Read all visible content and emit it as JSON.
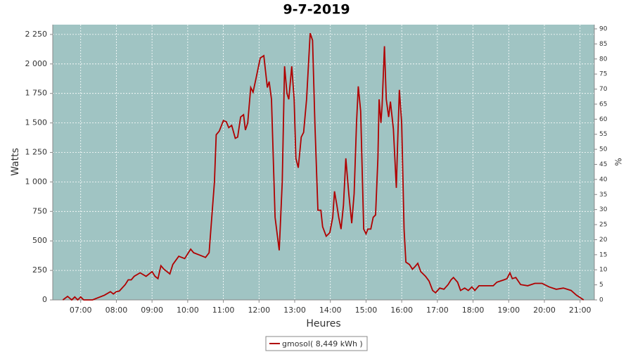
{
  "chart_data": {
    "type": "line",
    "title": "9-7-2019",
    "x_label": "Heures",
    "y_label": "Watts",
    "y2_label": "%",
    "xlim": [
      "06:13",
      "21:24"
    ],
    "xticks": [
      "07:00",
      "08:00",
      "09:00",
      "10:00",
      "11:00",
      "12:00",
      "13:00",
      "14:00",
      "15:00",
      "16:00",
      "17:00",
      "18:00",
      "19:00",
      "20:00",
      "21:00"
    ],
    "ylim": [
      0,
      2333
    ],
    "yticks": [
      0,
      250,
      500,
      750,
      {
        "value": 1000,
        "label": "1 000"
      },
      {
        "value": 1250,
        "label": "1 250"
      },
      {
        "value": 1500,
        "label": "1 500"
      },
      {
        "value": 1750,
        "label": "1 750"
      },
      {
        "value": 2000,
        "label": "2 000"
      },
      {
        "value": 2250,
        "label": "2 250"
      }
    ],
    "y2lim": [
      0,
      91.4
    ],
    "y2ticks": [
      0,
      5,
      10,
      15,
      20,
      25,
      30,
      35,
      40,
      45,
      50,
      55,
      60,
      65,
      70,
      75,
      80,
      85,
      90
    ],
    "grid": true,
    "plot_background": "#a0c4c3",
    "legend": "bottom",
    "x": [
      "06:30",
      "06:38",
      "06:45",
      "06:50",
      "06:55",
      "07:00",
      "07:05",
      "07:10",
      "07:20",
      "07:40",
      "07:50",
      "07:55",
      "08:00",
      "08:05",
      "08:15",
      "08:20",
      "08:25",
      "08:30",
      "08:40",
      "08:50",
      "09:00",
      "09:05",
      "09:10",
      "09:15",
      "09:20",
      "09:30",
      "09:35",
      "09:45",
      "09:55",
      "10:05",
      "10:10",
      "10:20",
      "10:30",
      "10:36",
      "10:45",
      "10:48",
      "10:53",
      "11:00",
      "11:05",
      "11:09",
      "11:14",
      "11:20",
      "11:24",
      "11:29",
      "11:34",
      "11:37",
      "11:41",
      "11:46",
      "11:50",
      "11:55",
      "12:02",
      "12:08",
      "12:14",
      "12:17",
      "12:21",
      "12:27",
      "12:34",
      "12:39",
      "12:43",
      "12:47",
      "12:50",
      "12:55",
      "12:59",
      "13:02",
      "13:06",
      "13:11",
      "13:15",
      "13:20",
      "13:26",
      "13:30",
      "13:34",
      "13:39",
      "13:44",
      "13:47",
      "13:53",
      "13:59",
      "14:04",
      "14:07",
      "14:11",
      "14:14",
      "14:18",
      "14:22",
      "14:26",
      "14:31",
      "14:36",
      "14:40",
      "14:44",
      "14:47",
      "14:51",
      "14:56",
      "15:00",
      "15:03",
      "15:08",
      "15:12",
      "15:16",
      "15:20",
      "15:22",
      "15:25",
      "15:27",
      "15:31",
      "15:34",
      "15:38",
      "15:41",
      "15:46",
      "15:51",
      "15:53",
      "15:56",
      "16:00",
      "16:04",
      "16:07",
      "16:13",
      "16:18",
      "16:22",
      "16:27",
      "16:32",
      "16:40",
      "16:46",
      "16:52",
      "16:57",
      "17:04",
      "17:11",
      "17:18",
      "17:23",
      "17:27",
      "17:34",
      "17:39",
      "17:46",
      "17:52",
      "17:58",
      "18:03",
      "18:10",
      "18:34",
      "18:40",
      "18:52",
      "18:57",
      "19:02",
      "19:06",
      "19:12",
      "19:20",
      "19:32",
      "19:44",
      "19:56",
      "20:08",
      "20:20",
      "20:32",
      "20:45",
      "20:54",
      "21:00",
      "21:06"
    ],
    "series": [
      {
        "name": "gmosol( 8,449 kWh )",
        "color": "#b00000",
        "values": [
          0,
          30,
          0,
          25,
          0,
          25,
          0,
          0,
          0,
          40,
          70,
          50,
          70,
          75,
          130,
          170,
          170,
          200,
          230,
          200,
          240,
          200,
          180,
          290,
          260,
          220,
          300,
          370,
          350,
          430,
          400,
          380,
          360,
          400,
          1000,
          1400,
          1430,
          1520,
          1510,
          1460,
          1480,
          1370,
          1380,
          1550,
          1570,
          1440,
          1500,
          1800,
          1760,
          1880,
          2050,
          2070,
          1800,
          1850,
          1700,
          700,
          420,
          1000,
          1980,
          1750,
          1700,
          1980,
          1700,
          1200,
          1120,
          1380,
          1420,
          1700,
          2260,
          2200,
          1500,
          760,
          760,
          620,
          540,
          570,
          700,
          920,
          800,
          700,
          600,
          800,
          1200,
          900,
          650,
          900,
          1500,
          1810,
          1600,
          600,
          560,
          600,
          600,
          700,
          720,
          1200,
          1700,
          1500,
          1650,
          2150,
          1700,
          1550,
          1680,
          1450,
          950,
          1300,
          1780,
          1500,
          600,
          320,
          300,
          260,
          280,
          310,
          240,
          200,
          160,
          80,
          60,
          100,
          90,
          130,
          170,
          190,
          150,
          80,
          100,
          80,
          110,
          80,
          120,
          120,
          150,
          170,
          180,
          230,
          180,
          190,
          130,
          120,
          140,
          140,
          110,
          90,
          100,
          80,
          40,
          20,
          0
        ]
      }
    ]
  }
}
